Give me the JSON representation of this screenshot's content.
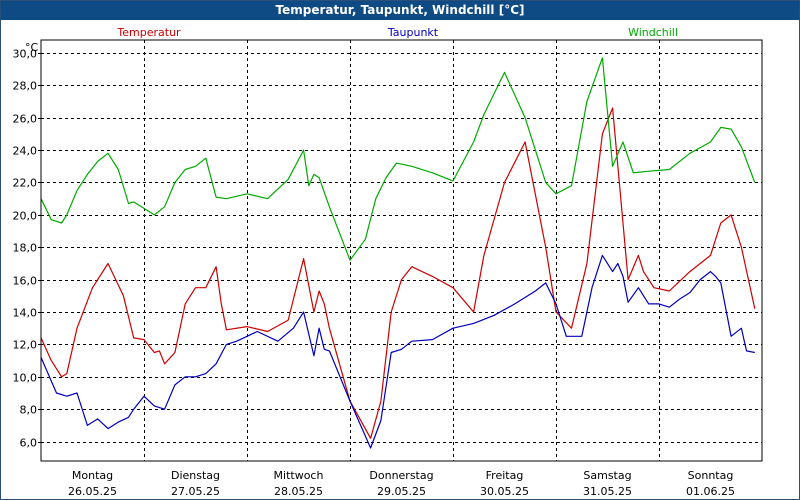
{
  "window": {
    "title": "Temperatur, Taupunkt, Windchill [°C]"
  },
  "chart_data": {
    "type": "line",
    "title": "Temperatur, Taupunkt, Windchill [°C]",
    "ylabel": "°C",
    "ylim": [
      4.8,
      30.8
    ],
    "yticks": [
      "6,0",
      "8,0",
      "10,0",
      "12,0",
      "14,0",
      "16,0",
      "18,0",
      "20,0",
      "22,0",
      "24,0",
      "26,0",
      "28,0",
      "30,0"
    ],
    "ytick_values": [
      6,
      8,
      10,
      12,
      14,
      16,
      18,
      20,
      22,
      24,
      26,
      28,
      30
    ],
    "xlim": [
      0,
      7
    ],
    "grid": true,
    "days": [
      {
        "weekday": "Montag",
        "date": "26.05.25"
      },
      {
        "weekday": "Dienstag",
        "date": "27.05.25"
      },
      {
        "weekday": "Mittwoch",
        "date": "28.05.25"
      },
      {
        "weekday": "Donnerstag",
        "date": "29.05.25"
      },
      {
        "weekday": "Freitag",
        "date": "30.05.25"
      },
      {
        "weekday": "Samstag",
        "date": "31.05.25"
      },
      {
        "weekday": "Sonntag",
        "date": "01.06.25"
      }
    ],
    "legend": [
      {
        "label": "Temperatur",
        "color": "#cc0000"
      },
      {
        "label": "Taupunkt",
        "color": "#0000bb"
      },
      {
        "label": "Windchill",
        "color": "#00aa00"
      }
    ],
    "series": [
      {
        "name": "Temperatur",
        "color": "#cc0000",
        "x": [
          0,
          0.1,
          0.2,
          0.25,
          0.35,
          0.5,
          0.65,
          0.8,
          0.9,
          1.0,
          1.1,
          1.15,
          1.2,
          1.3,
          1.4,
          1.5,
          1.6,
          1.7,
          1.75,
          1.8,
          2.0,
          2.2,
          2.4,
          2.55,
          2.65,
          2.7,
          2.75,
          2.8,
          3.0,
          3.2,
          3.3,
          3.4,
          3.5,
          3.6,
          3.8,
          4.0,
          4.2,
          4.3,
          4.5,
          4.7,
          4.9,
          5.0,
          5.15,
          5.3,
          5.45,
          5.55,
          5.7,
          5.8,
          5.85,
          5.95,
          6.1,
          6.3,
          6.5,
          6.6,
          6.7,
          6.8,
          6.93
        ],
        "values": [
          12.4,
          11.0,
          10.0,
          10.2,
          13.0,
          15.5,
          17.0,
          15.0,
          12.4,
          12.3,
          11.5,
          11.6,
          10.8,
          11.5,
          14.5,
          15.5,
          15.5,
          16.8,
          14.5,
          12.9,
          13.1,
          12.8,
          13.5,
          17.3,
          14.0,
          15.3,
          14.5,
          13.0,
          8.5,
          6.2,
          8.5,
          14.0,
          16.0,
          16.8,
          16.2,
          15.5,
          14.0,
          17.5,
          22.0,
          24.5,
          18.0,
          14.0,
          13.0,
          17.0,
          25.0,
          26.6,
          16.0,
          17.5,
          16.5,
          15.5,
          15.3,
          16.5,
          17.5,
          19.5,
          20.0,
          18.0,
          14.2
        ]
      },
      {
        "name": "Taupunkt",
        "color": "#0000bb",
        "x": [
          0,
          0.15,
          0.25,
          0.35,
          0.45,
          0.55,
          0.65,
          0.75,
          0.85,
          0.9,
          1.0,
          1.1,
          1.2,
          1.3,
          1.4,
          1.5,
          1.6,
          1.7,
          1.8,
          1.9,
          2.1,
          2.3,
          2.45,
          2.55,
          2.65,
          2.7,
          2.75,
          2.8,
          3.0,
          3.2,
          3.3,
          3.4,
          3.5,
          3.6,
          3.8,
          4.0,
          4.2,
          4.4,
          4.6,
          4.8,
          4.9,
          5.0,
          5.1,
          5.25,
          5.35,
          5.45,
          5.55,
          5.6,
          5.65,
          5.7,
          5.8,
          5.9,
          6.0,
          6.1,
          6.2,
          6.3,
          6.4,
          6.5,
          6.55,
          6.6,
          6.7,
          6.8,
          6.85,
          6.93
        ],
        "values": [
          11.2,
          9.0,
          8.8,
          9.0,
          7.0,
          7.4,
          6.8,
          7.2,
          7.5,
          8.0,
          8.8,
          8.2,
          8.0,
          9.5,
          10.0,
          10.0,
          10.2,
          10.8,
          12.0,
          12.2,
          12.8,
          12.2,
          13.0,
          14.0,
          11.3,
          13.0,
          11.7,
          11.6,
          8.5,
          5.6,
          7.3,
          11.5,
          11.7,
          12.2,
          12.3,
          13.0,
          13.3,
          13.8,
          14.5,
          15.3,
          15.8,
          14.5,
          12.5,
          12.5,
          15.5,
          17.5,
          16.5,
          17.0,
          16.2,
          14.6,
          15.5,
          14.5,
          14.5,
          14.3,
          14.8,
          15.2,
          16.0,
          16.5,
          16.2,
          15.8,
          12.5,
          13.0,
          11.6,
          11.5
        ]
      },
      {
        "name": "Windchill",
        "color": "#00aa00",
        "x": [
          0,
          0.1,
          0.2,
          0.25,
          0.35,
          0.45,
          0.55,
          0.65,
          0.75,
          0.85,
          0.9,
          1.0,
          1.1,
          1.2,
          1.3,
          1.4,
          1.5,
          1.6,
          1.7,
          1.8,
          2.0,
          2.2,
          2.4,
          2.55,
          2.6,
          2.65,
          2.7,
          2.8,
          3.0,
          3.15,
          3.25,
          3.35,
          3.45,
          3.6,
          3.8,
          4.0,
          4.2,
          4.3,
          4.5,
          4.7,
          4.9,
          5.0,
          5.15,
          5.3,
          5.45,
          5.55,
          5.65,
          5.75,
          5.9,
          6.1,
          6.3,
          6.5,
          6.6,
          6.7,
          6.8,
          6.93
        ],
        "values": [
          21.0,
          19.7,
          19.5,
          20.0,
          21.5,
          22.5,
          23.3,
          23.8,
          22.8,
          20.7,
          20.8,
          20.4,
          20.0,
          20.5,
          22.0,
          22.8,
          23.0,
          23.5,
          21.1,
          21.0,
          21.3,
          21.0,
          22.2,
          24.0,
          21.8,
          22.5,
          22.3,
          20.5,
          17.2,
          18.5,
          21.0,
          22.3,
          23.2,
          23.0,
          22.6,
          22.1,
          24.5,
          26.2,
          28.8,
          26.0,
          22.0,
          21.3,
          21.8,
          27.0,
          29.7,
          23.0,
          24.5,
          22.6,
          22.7,
          22.8,
          23.8,
          24.5,
          25.4,
          25.3,
          24.2,
          22.0
        ]
      }
    ]
  }
}
